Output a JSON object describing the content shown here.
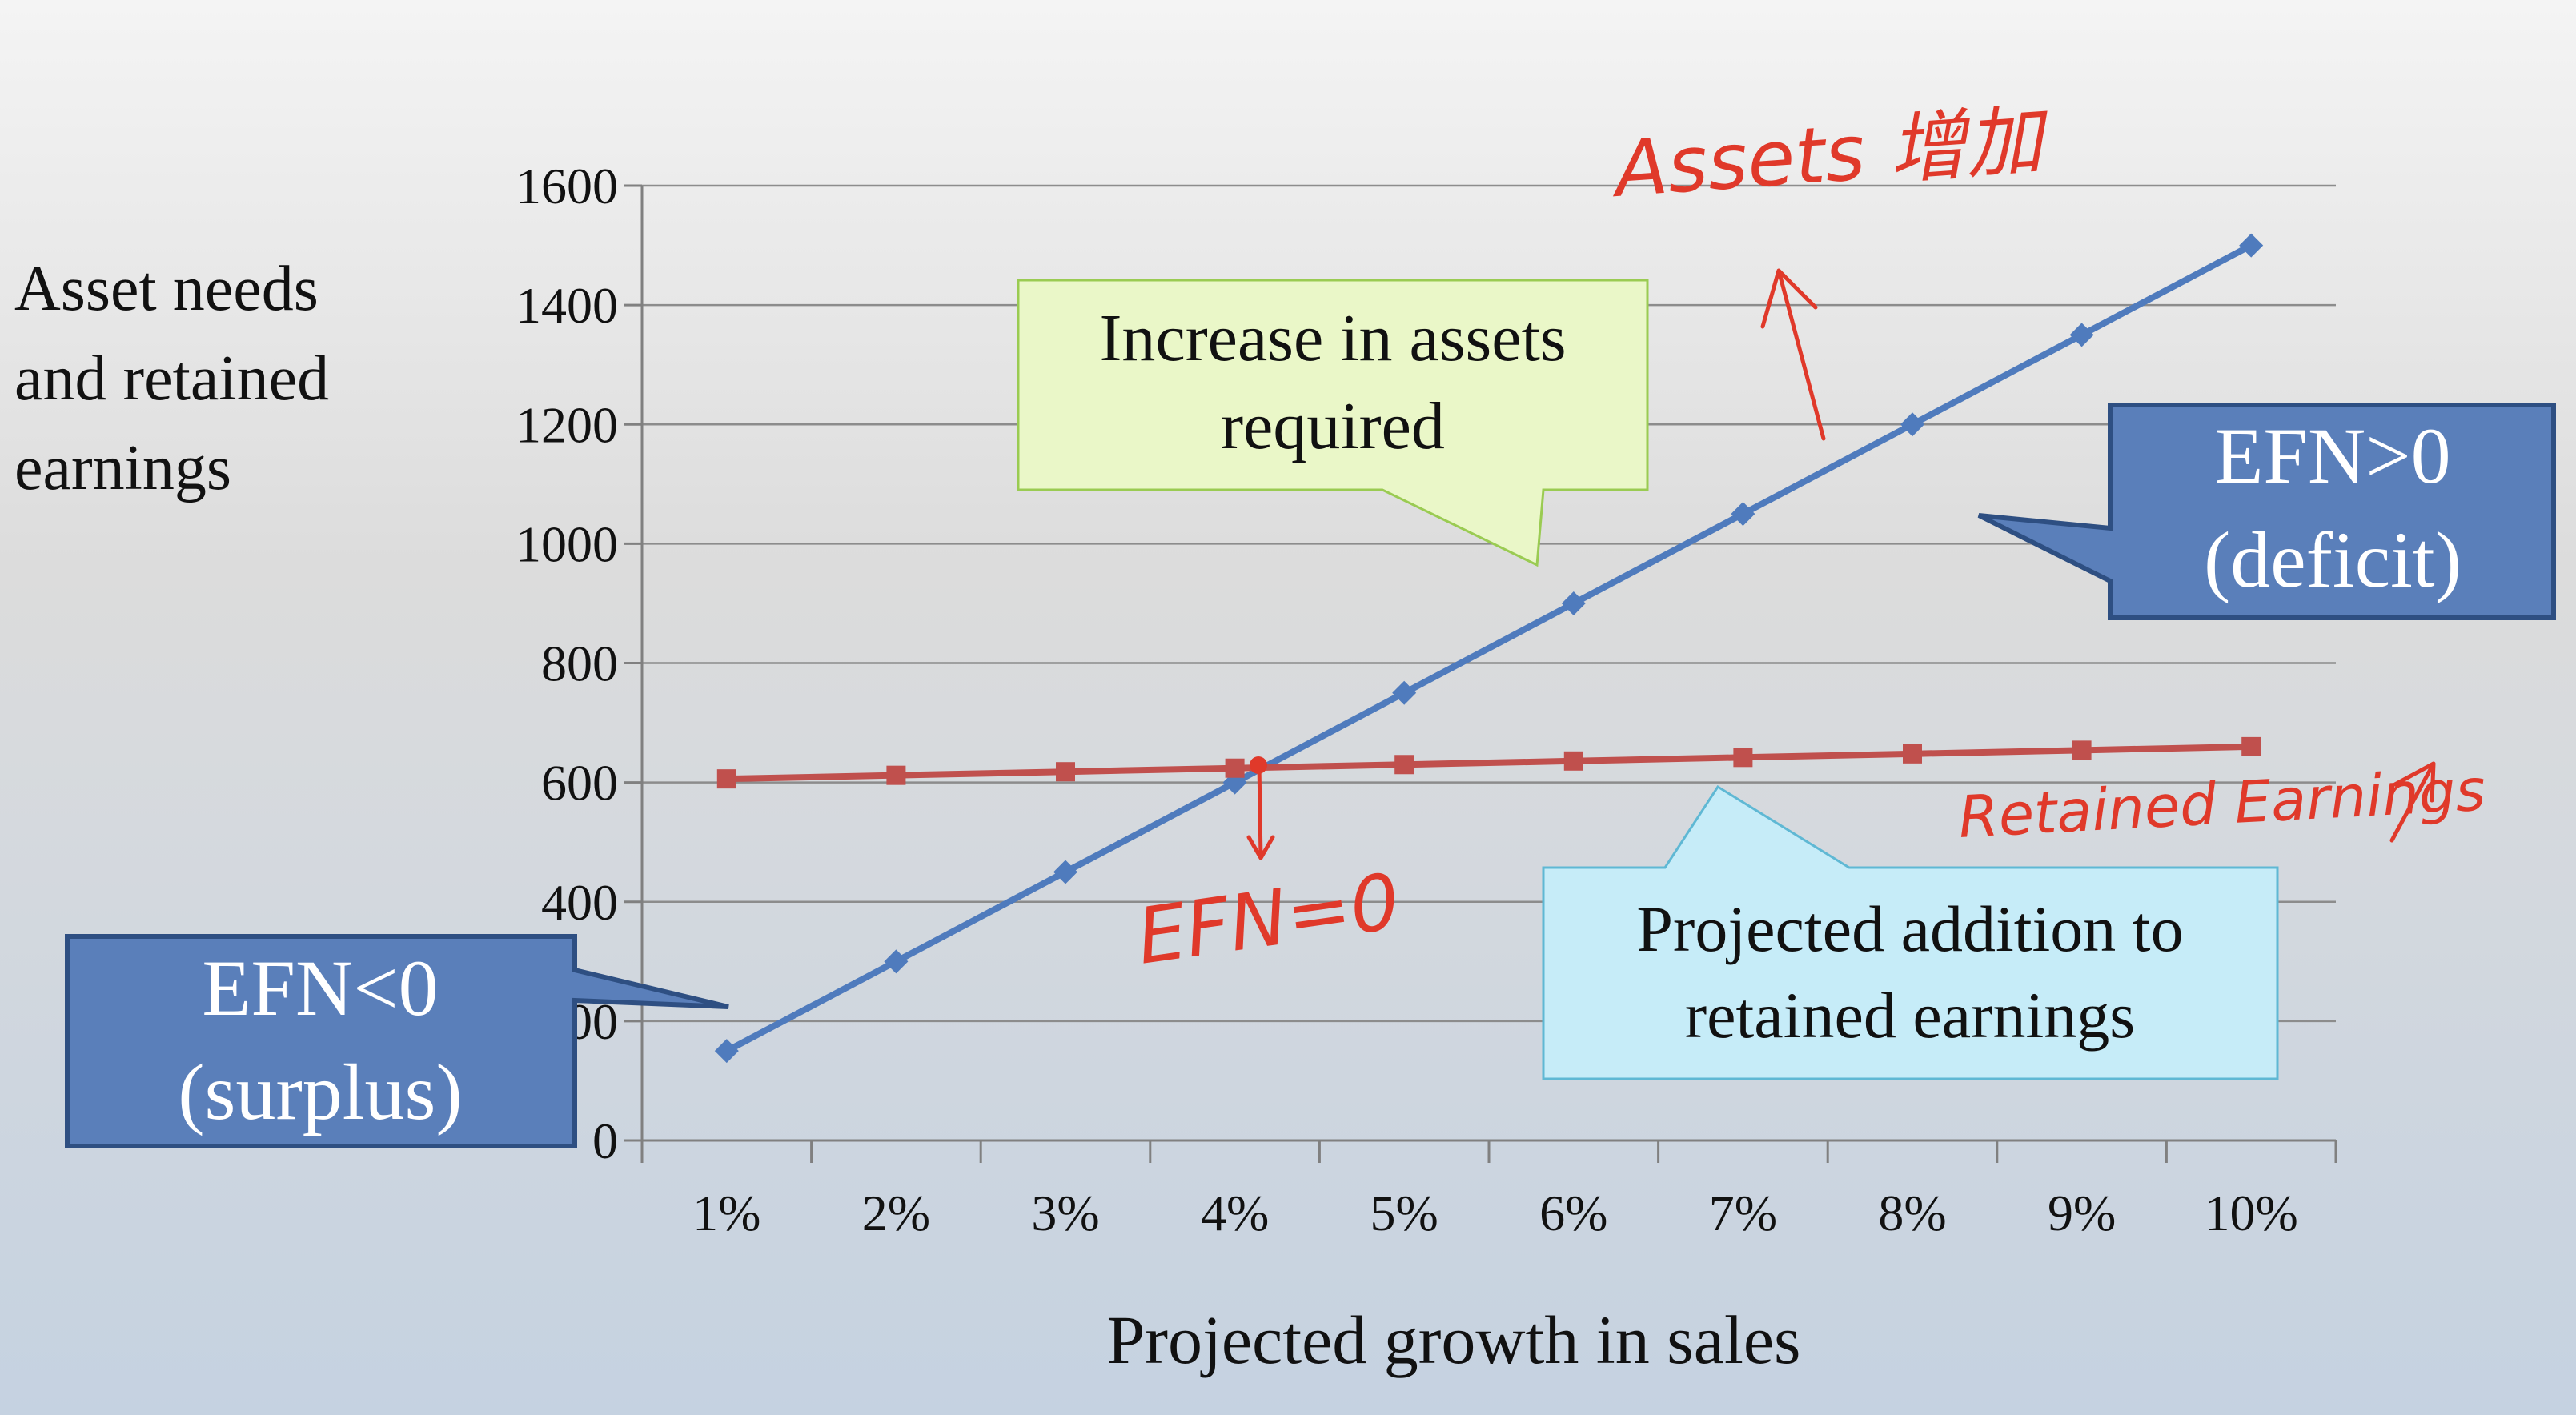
{
  "chart_data": {
    "type": "line",
    "title": "",
    "xlabel": "Projected growth in sales",
    "ylabel": [
      "Asset needs",
      "and retained",
      "earnings"
    ],
    "categories": [
      "1%",
      "2%",
      "3%",
      "4%",
      "5%",
      "6%",
      "7%",
      "8%",
      "9%",
      "10%"
    ],
    "ylim": [
      0,
      1600
    ],
    "yticks": [
      "0",
      "200",
      "400",
      "600",
      "800",
      "1000",
      "1200",
      "1400",
      "1600"
    ],
    "grid": true,
    "series": [
      {
        "name": "Increase in assets required",
        "color": "#4f7bbd",
        "marker": "diamond",
        "values": [
          150,
          300,
          450,
          600,
          750,
          900,
          1050,
          1200,
          1350,
          1500
        ]
      },
      {
        "name": "Projected addition to retained earnings",
        "color": "#c0504d",
        "marker": "square",
        "values": [
          606,
          612,
          618,
          624,
          630,
          636,
          642,
          648,
          654,
          660
        ]
      }
    ]
  },
  "callouts": {
    "assets": [
      "Increase in assets",
      "required"
    ],
    "retained": [
      "Projected addition to",
      "retained earnings"
    ],
    "deficit": [
      "EFN>0",
      "(deficit)"
    ],
    "surplus": [
      "EFN<0",
      "(surplus)"
    ]
  },
  "handwritten": {
    "assets": "Assets 增加",
    "retained": "Retained Earnings",
    "efn_zero": "EFN=0"
  },
  "colors": {
    "assets_line": "#4f7bbd",
    "retained_line": "#c0504d",
    "handwriting": "#e0392a",
    "efn_box": "#5a7fba",
    "assets_callout": "#eaf7c8",
    "retained_callout": "#c6ecf8"
  }
}
